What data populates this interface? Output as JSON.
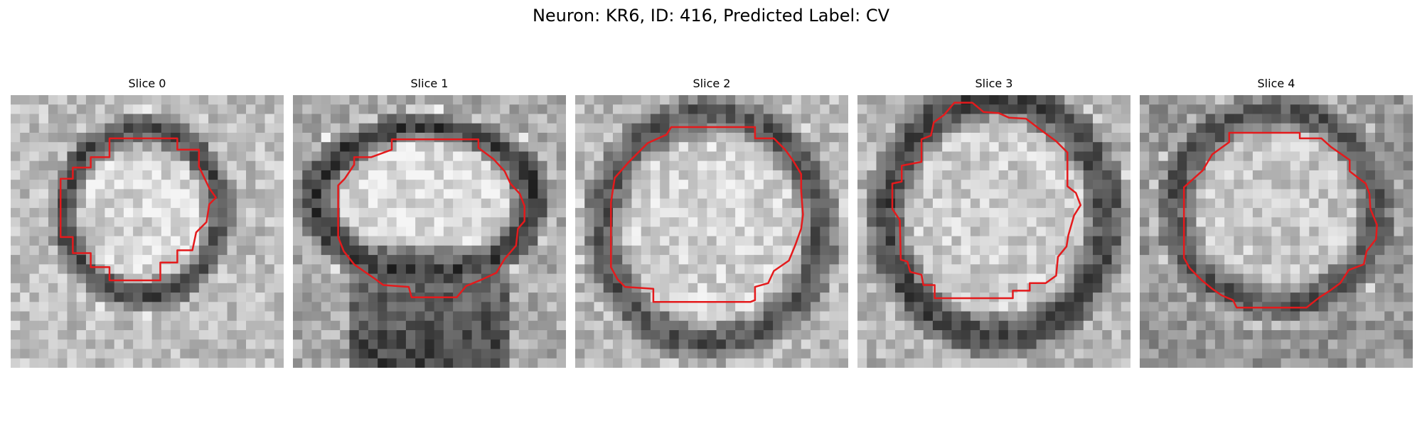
{
  "figure": {
    "title": "Neuron: KR6, ID: 416, Predicted Label: CV",
    "contour_color": "#e41a1c"
  },
  "panels": [
    {
      "title": "Slice 0"
    },
    {
      "title": "Slice 1"
    },
    {
      "title": "Slice 2"
    },
    {
      "title": "Slice 3"
    },
    {
      "title": "Slice 4"
    }
  ]
}
